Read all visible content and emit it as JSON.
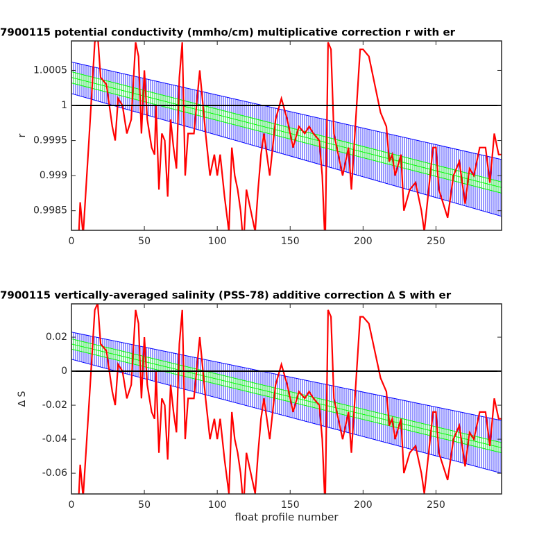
{
  "chart_data": [
    {
      "type": "line",
      "title": "7900115 potential conductivity (mmho/cm) multiplicative correction r with er",
      "ylabel": "r",
      "xlim": [
        0,
        295
      ],
      "xticks": [
        0,
        50,
        100,
        150,
        200,
        250
      ],
      "ylim": [
        0.99822,
        1.00092
      ],
      "yticks": [
        0.9985,
        0.999,
        0.9995,
        1,
        1.0005
      ],
      "hline": 1,
      "series": [
        {
          "color": "#0000ff",
          "x": [
            0,
            295
          ],
          "values": [
            1.00062,
            0.99923
          ]
        },
        {
          "color": "#0000ff",
          "x": [
            0,
            295
          ],
          "values": [
            1.00017,
            0.99842
          ]
        },
        {
          "color": "#00ff00",
          "x": [
            0,
            295
          ],
          "values": [
            1.00048,
            0.99891
          ]
        },
        {
          "color": "#00ff00",
          "x": [
            0,
            295
          ],
          "values": [
            1.0004,
            0.99883
          ]
        },
        {
          "color": "#00ff00",
          "x": [
            0,
            295
          ],
          "values": [
            1.00032,
            0.99875
          ]
        },
        {
          "color": "#ff0000",
          "x": [
            5,
            6,
            8,
            12,
            16,
            18,
            20,
            24,
            28,
            30,
            32,
            35,
            38,
            41,
            44,
            46,
            48,
            50,
            52,
            55,
            57,
            58,
            60,
            62,
            64,
            66,
            68,
            70,
            72,
            74,
            76,
            78,
            80,
            84,
            88,
            92,
            95,
            98,
            100,
            102,
            105,
            108,
            110,
            112,
            114,
            116,
            118,
            120,
            124,
            126,
            128,
            130,
            132,
            134,
            136,
            140,
            144,
            148,
            152,
            156,
            160,
            163,
            166,
            170,
            172,
            174,
            176,
            178,
            180,
            183,
            186,
            190,
            192,
            195,
            198,
            200,
            204,
            206,
            208,
            212,
            216,
            218,
            220,
            222,
            226,
            228,
            232,
            236,
            240,
            242,
            246,
            248,
            250,
            252,
            255,
            258,
            262,
            266,
            270,
            273,
            276,
            280,
            284,
            287,
            290,
            293,
            295
          ],
          "values": [
            0.99815,
            0.99862,
            0.99815,
            0.9995,
            1.0009,
            1.001,
            1.0004,
            1.0003,
            0.9997,
            0.9995,
            1.0001,
            1,
            0.9996,
            0.9998,
            1.0009,
            1.0007,
            0.9996,
            1.0005,
            0.9998,
            0.9994,
            0.9993,
            1,
            0.9988,
            0.9996,
            0.9995,
            0.9987,
            0.9998,
            0.9994,
            0.9991,
            1.0004,
            1.0009,
            0.999,
            0.9996,
            0.9996,
            1.0005,
            0.9996,
            0.999,
            0.9993,
            0.999,
            0.9993,
            0.9987,
            0.9982,
            0.9994,
            0.999,
            0.9988,
            0.9985,
            0.998,
            0.9988,
            0.9984,
            0.9982,
            0.9988,
            0.9993,
            0.9996,
            0.9993,
            0.999,
            0.9998,
            1.0001,
            0.9998,
            0.9994,
            0.9997,
            0.9996,
            0.9997,
            0.9996,
            0.9995,
            0.999,
            0.998,
            1.0009,
            1.0008,
            0.9996,
            0.9993,
            0.999,
            0.9994,
            0.9988,
            0.9998,
            1.0008,
            1.0008,
            1.0007,
            1.0005,
            1.0003,
            0.9999,
            0.9997,
            0.9992,
            0.9993,
            0.999,
            0.9993,
            0.9985,
            0.9988,
            0.9989,
            0.9985,
            0.9982,
            0.999,
            0.9994,
            0.9994,
            0.9988,
            0.9986,
            0.9984,
            0.999,
            0.9992,
            0.9986,
            0.9991,
            0.999,
            0.9994,
            0.9994,
            0.9989,
            0.9996,
            0.9993,
            0.9993
          ]
        }
      ]
    },
    {
      "type": "line",
      "title": "7900115 vertically-averaged salinity (PSS-78) additive correction ∆ S with er",
      "ylabel": "∆ S",
      "xlabel": "float profile number",
      "xlim": [
        0,
        295
      ],
      "xticks": [
        0,
        50,
        100,
        150,
        200,
        250
      ],
      "ylim": [
        -0.0722,
        0.0396
      ],
      "yticks": [
        -0.06,
        -0.04,
        -0.02,
        0,
        0.02
      ],
      "hline": 0,
      "series": [
        {
          "color": "#0000ff",
          "x": [
            0,
            295
          ],
          "values": [
            0.023,
            -0.029
          ]
        },
        {
          "color": "#0000ff",
          "x": [
            0,
            295
          ],
          "values": [
            0.007,
            -0.06
          ]
        },
        {
          "color": "#00ff00",
          "x": [
            0,
            295
          ],
          "values": [
            0.019,
            -0.042
          ]
        },
        {
          "color": "#00ff00",
          "x": [
            0,
            295
          ],
          "values": [
            0.016,
            -0.045
          ]
        },
        {
          "color": "#00ff00",
          "x": [
            0,
            295
          ],
          "values": [
            0.013,
            -0.048
          ]
        },
        {
          "color": "#ff0000",
          "x": [
            5,
            6,
            8,
            12,
            16,
            18,
            20,
            24,
            28,
            30,
            32,
            35,
            38,
            41,
            44,
            46,
            48,
            50,
            52,
            55,
            57,
            58,
            60,
            62,
            64,
            66,
            68,
            70,
            72,
            74,
            76,
            78,
            80,
            84,
            88,
            92,
            95,
            98,
            100,
            102,
            105,
            108,
            110,
            112,
            114,
            116,
            118,
            120,
            124,
            126,
            128,
            130,
            132,
            134,
            136,
            140,
            144,
            148,
            152,
            156,
            160,
            163,
            166,
            170,
            172,
            174,
            176,
            178,
            180,
            183,
            186,
            190,
            192,
            195,
            198,
            200,
            204,
            206,
            208,
            212,
            216,
            218,
            220,
            222,
            226,
            228,
            232,
            236,
            240,
            242,
            246,
            248,
            250,
            252,
            255,
            258,
            262,
            266,
            270,
            273,
            276,
            280,
            284,
            287,
            290,
            293,
            295
          ],
          "values": [
            -0.074,
            -0.055,
            -0.074,
            -0.02,
            0.036,
            0.04,
            0.016,
            0.012,
            -0.012,
            -0.02,
            0.004,
            0,
            -0.016,
            -0.008,
            0.036,
            0.028,
            -0.016,
            0.02,
            -0.008,
            -0.024,
            -0.028,
            0,
            -0.048,
            -0.016,
            -0.02,
            -0.052,
            -0.008,
            -0.024,
            -0.036,
            0.016,
            0.036,
            -0.04,
            -0.016,
            -0.016,
            0.02,
            -0.016,
            -0.04,
            -0.028,
            -0.04,
            -0.028,
            -0.052,
            -0.072,
            -0.024,
            -0.04,
            -0.048,
            -0.06,
            -0.08,
            -0.048,
            -0.064,
            -0.072,
            -0.048,
            -0.028,
            -0.016,
            -0.028,
            -0.04,
            -0.008,
            0.004,
            -0.008,
            -0.024,
            -0.012,
            -0.016,
            -0.012,
            -0.016,
            -0.02,
            -0.04,
            -0.08,
            0.036,
            0.032,
            -0.016,
            -0.028,
            -0.04,
            -0.024,
            -0.048,
            -0.008,
            0.032,
            0.032,
            0.028,
            0.02,
            0.012,
            -0.004,
            -0.012,
            -0.032,
            -0.028,
            -0.04,
            -0.028,
            -0.06,
            -0.048,
            -0.044,
            -0.06,
            -0.072,
            -0.04,
            -0.024,
            -0.024,
            -0.048,
            -0.056,
            -0.064,
            -0.04,
            -0.032,
            -0.056,
            -0.036,
            -0.04,
            -0.024,
            -0.024,
            -0.044,
            -0.016,
            -0.028,
            -0.028
          ]
        }
      ]
    }
  ]
}
